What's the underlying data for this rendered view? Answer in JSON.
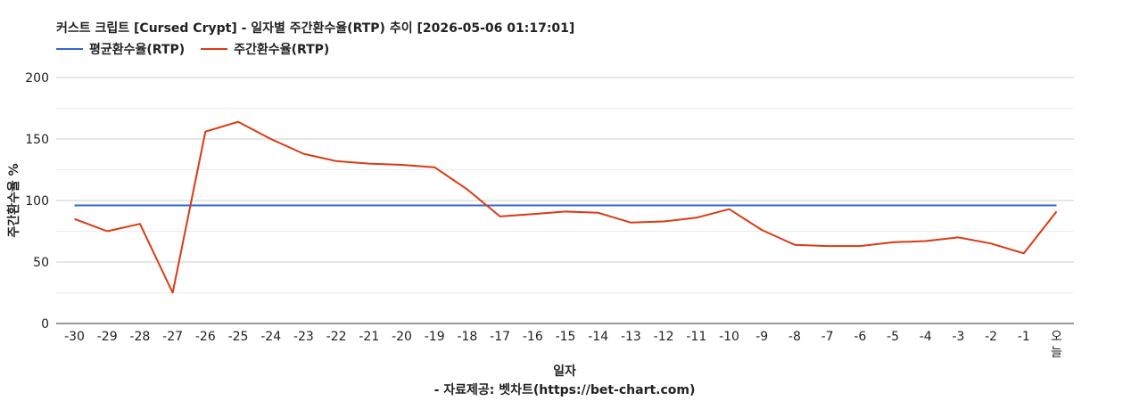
{
  "chart_data": {
    "type": "line",
    "title": "커스트 크립트 [Cursed Crypt] - 일자별 주간환수율(RTP) 추이 [2026-05-06 01:17:01]",
    "xlabel": "일자",
    "ylabel": "주간환수율 %",
    "credit": "- 자료제공: 벳차트(https://bet-chart.com)",
    "ylim": [
      0,
      200
    ],
    "yticks": [
      0,
      50,
      100,
      150,
      200
    ],
    "grid": true,
    "legend_position": "top-left",
    "categories": [
      "-30",
      "-29",
      "-28",
      "-27",
      "-26",
      "-25",
      "-24",
      "-23",
      "-22",
      "-21",
      "-20",
      "-19",
      "-18",
      "-17",
      "-16",
      "-15",
      "-14",
      "-13",
      "-12",
      "-11",
      "-10",
      "-9",
      "-8",
      "-7",
      "-6",
      "-5",
      "-4",
      "-3",
      "-2",
      "-1",
      "오늘"
    ],
    "series": [
      {
        "name": "평균환수율(RTP)",
        "color": "#3366cc",
        "values": [
          96,
          96,
          96,
          96,
          96,
          96,
          96,
          96,
          96,
          96,
          96,
          96,
          96,
          96,
          96,
          96,
          96,
          96,
          96,
          96,
          96,
          96,
          96,
          96,
          96,
          96,
          96,
          96,
          96,
          96,
          96
        ]
      },
      {
        "name": "주간환수율(RTP)",
        "color": "#dc3912",
        "values": [
          85,
          75,
          81,
          25,
          156,
          164,
          150,
          138,
          132,
          130,
          129,
          127,
          109,
          87,
          89,
          91,
          90,
          82,
          83,
          86,
          93,
          76,
          64,
          63,
          63,
          66,
          67,
          70,
          65,
          57,
          91
        ]
      }
    ]
  }
}
